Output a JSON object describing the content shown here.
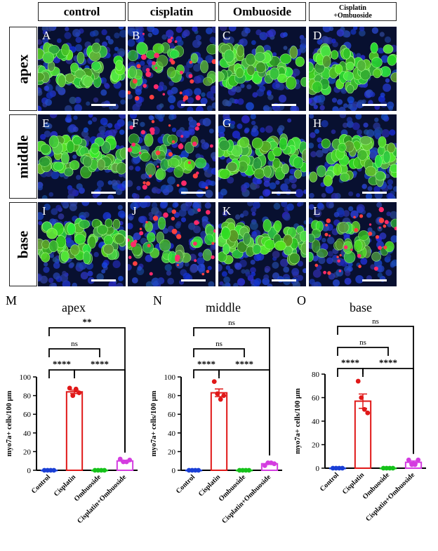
{
  "columns": [
    "control",
    "cisplatin",
    "Ombuoside",
    "Cisplatin +Ombuoside"
  ],
  "column_lines": [
    [
      "control"
    ],
    [
      "cisplatin"
    ],
    [
      "Ombuoside"
    ],
    [
      "Cisplatin",
      "+Ombuoside"
    ]
  ],
  "rows": [
    "apex",
    "middle",
    "base"
  ],
  "panels": [
    "A",
    "B",
    "C",
    "D",
    "E",
    "F",
    "G",
    "H",
    "I",
    "J",
    "K",
    "L"
  ],
  "chart_letters": [
    "M",
    "N",
    "O"
  ],
  "chart_data": [
    {
      "type": "bar",
      "title": "apex",
      "ylabel": "myo7a+ cells/100 µm",
      "categories": [
        "Control",
        "Cisplatin",
        "Ombuoside",
        "Cisplatin+Ombuoside"
      ],
      "values": [
        0,
        84,
        0,
        10
      ],
      "points": [
        [
          0,
          0,
          0,
          0
        ],
        [
          88,
          80,
          87,
          83
        ],
        [
          0,
          0,
          0,
          0
        ],
        [
          12,
          9,
          9,
          11
        ]
      ],
      "ylim": [
        0,
        100
      ],
      "yticks": [
        0,
        20,
        40,
        60,
        80,
        100
      ],
      "significance": [
        {
          "pair": [
            0,
            1
          ],
          "label": "****"
        },
        {
          "pair": [
            1,
            3
          ],
          "label": "****"
        },
        {
          "pair": [
            0,
            2
          ],
          "label": "ns"
        },
        {
          "pair": [
            0,
            3
          ],
          "label": "**"
        }
      ],
      "colors": [
        "#1a3fd6",
        "#e01818",
        "#15c21a",
        "#d43ce0"
      ]
    },
    {
      "type": "bar",
      "title": "middle",
      "ylabel": "myo7a+ cells/100 µm",
      "categories": [
        "Control",
        "Cisplatin",
        "Ombuoside",
        "Cisplatin+Ombuoside"
      ],
      "values": [
        0,
        83,
        0,
        7
      ],
      "points": [
        [
          0,
          0,
          0,
          0
        ],
        [
          95,
          82,
          76,
          80
        ],
        [
          0,
          0,
          0,
          0
        ],
        [
          5,
          8,
          8,
          7
        ]
      ],
      "ylim": [
        0,
        100
      ],
      "yticks": [
        0,
        20,
        40,
        60,
        80,
        100
      ],
      "significance": [
        {
          "pair": [
            0,
            1
          ],
          "label": "****"
        },
        {
          "pair": [
            1,
            3
          ],
          "label": "****"
        },
        {
          "pair": [
            0,
            2
          ],
          "label": "ns"
        },
        {
          "pair": [
            0,
            3
          ],
          "label": "ns"
        }
      ],
      "colors": [
        "#1a3fd6",
        "#e01818",
        "#15c21a",
        "#d43ce0"
      ]
    },
    {
      "type": "bar",
      "title": "base",
      "ylabel": "myo7a+ cells/100 µm",
      "categories": [
        "Control",
        "Cisplatin",
        "Ombuoside",
        "Cisplatin+Ombuoside"
      ],
      "values": [
        0,
        57,
        0,
        5
      ],
      "points": [
        [
          0,
          0,
          0,
          0
        ],
        [
          74,
          60,
          50,
          47
        ],
        [
          0,
          0,
          0,
          0
        ],
        [
          7,
          3,
          3,
          7
        ]
      ],
      "ylim": [
        0,
        80
      ],
      "yticks": [
        0,
        20,
        40,
        60,
        80
      ],
      "significance": [
        {
          "pair": [
            0,
            1
          ],
          "label": "****"
        },
        {
          "pair": [
            1,
            3
          ],
          "label": "****"
        },
        {
          "pair": [
            0,
            2
          ],
          "label": "ns"
        },
        {
          "pair": [
            0,
            3
          ],
          "label": "ns"
        }
      ],
      "colors": [
        "#1a3fd6",
        "#e01818",
        "#15c21a",
        "#d43ce0"
      ]
    }
  ]
}
